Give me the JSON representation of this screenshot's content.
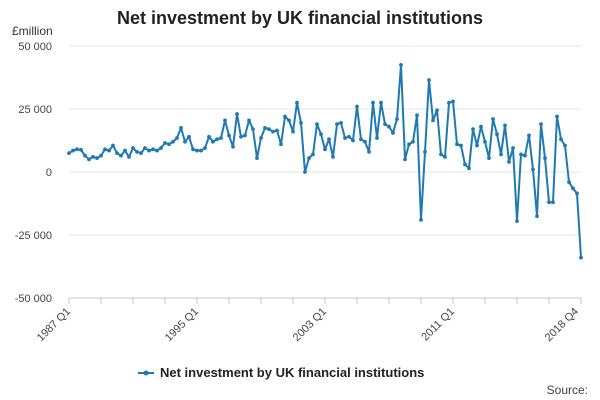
{
  "chart_data": {
    "type": "line",
    "title": "Net investment by UK financial institutions",
    "ylabel": "£million",
    "xlabel": "",
    "ylim": [
      -50000,
      50000
    ],
    "y_ticks": [
      50000,
      25000,
      0,
      -25000,
      -50000
    ],
    "y_tick_labels": [
      "50 000",
      "25 000",
      "0",
      "-25 000",
      "-50 000"
    ],
    "x_tick_labels": [
      "1987 Q1",
      "1995 Q1",
      "2003 Q1",
      "2011 Q1",
      "2018 Q4"
    ],
    "x_tick_indices": [
      0,
      32,
      64,
      96,
      127
    ],
    "grid": true,
    "legend_position": "bottom",
    "series": [
      {
        "name": "Net investment by UK financial institutions",
        "color": "#1f7ab3",
        "values": [
          7500,
          8500,
          9000,
          8800,
          6500,
          5000,
          6000,
          5500,
          6500,
          9000,
          8500,
          10500,
          7500,
          6500,
          8500,
          6000,
          9500,
          8000,
          7500,
          9500,
          8500,
          9000,
          8500,
          9500,
          11500,
          11000,
          12000,
          13500,
          17500,
          12000,
          14000,
          9000,
          8500,
          8500,
          9500,
          14000,
          12000,
          13000,
          13500,
          20500,
          14500,
          10000,
          23000,
          14000,
          14500,
          20500,
          17000,
          5500,
          13500,
          17500,
          17000,
          16000,
          16500,
          11000,
          22000,
          20500,
          16000,
          27500,
          19500,
          0,
          5500,
          7000,
          19000,
          15000,
          9000,
          13000,
          6000,
          19000,
          19500,
          13500,
          14000,
          12500,
          26000,
          13000,
          12000,
          8000,
          27500,
          13500,
          27500,
          19000,
          18000,
          15500,
          21000,
          42500,
          5000,
          11000,
          12000,
          22500,
          -19000,
          8000,
          36500,
          20500,
          24500,
          7000,
          6000,
          27500,
          28000,
          11000,
          10500,
          3000,
          1500,
          17000,
          10500,
          18000,
          12000,
          5500,
          21000,
          15000,
          7000,
          18500,
          4000,
          9500,
          -19500,
          7000,
          6500,
          14500,
          1000,
          -17500,
          19000,
          5500,
          -12000,
          -12000,
          22000,
          13000,
          10500,
          -4000,
          -6500,
          -8500,
          -34000
        ]
      }
    ]
  },
  "source_label": "Source:"
}
